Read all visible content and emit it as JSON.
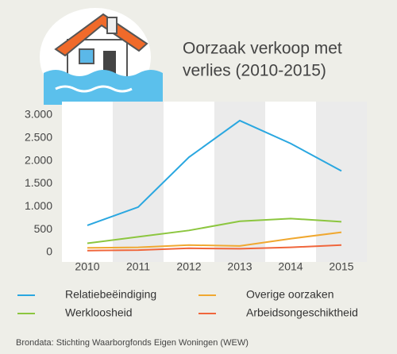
{
  "chart_data": {
    "type": "line",
    "title_lines": [
      "Oorzaak verkoop met",
      "verlies (2010-2015)"
    ],
    "categories": [
      "2010",
      "2011",
      "2012",
      "2013",
      "2014",
      "2015"
    ],
    "series": [
      {
        "name": "Relatiebeëindiging",
        "color": "#2aa7e0",
        "values": [
          590,
          990,
          2080,
          2880,
          2380,
          1780
        ]
      },
      {
        "name": "Overige oorzaken",
        "color": "#f0a830",
        "values": [
          100,
          110,
          160,
          140,
          300,
          440
        ]
      },
      {
        "name": "Werkloosheid",
        "color": "#8cc63f",
        "values": [
          200,
          340,
          480,
          680,
          740,
          670
        ]
      },
      {
        "name": "Arbeidsongeschiktheid",
        "color": "#f0663c",
        "values": [
          40,
          50,
          90,
          80,
          110,
          160
        ]
      }
    ],
    "ylim": [
      0,
      3000
    ],
    "yticks": [
      0,
      500,
      {
        "value": 1000,
        "label": "1.000"
      },
      {
        "value": 1500,
        "label": "1.500"
      },
      {
        "value": 2000,
        "label": "2.000"
      },
      {
        "value": 2500,
        "label": "2.500"
      },
      {
        "value": 3000,
        "label": "3.000"
      }
    ],
    "source": "Brondata: Stichting Waarborgfonds Eigen Woningen (WEW)"
  }
}
